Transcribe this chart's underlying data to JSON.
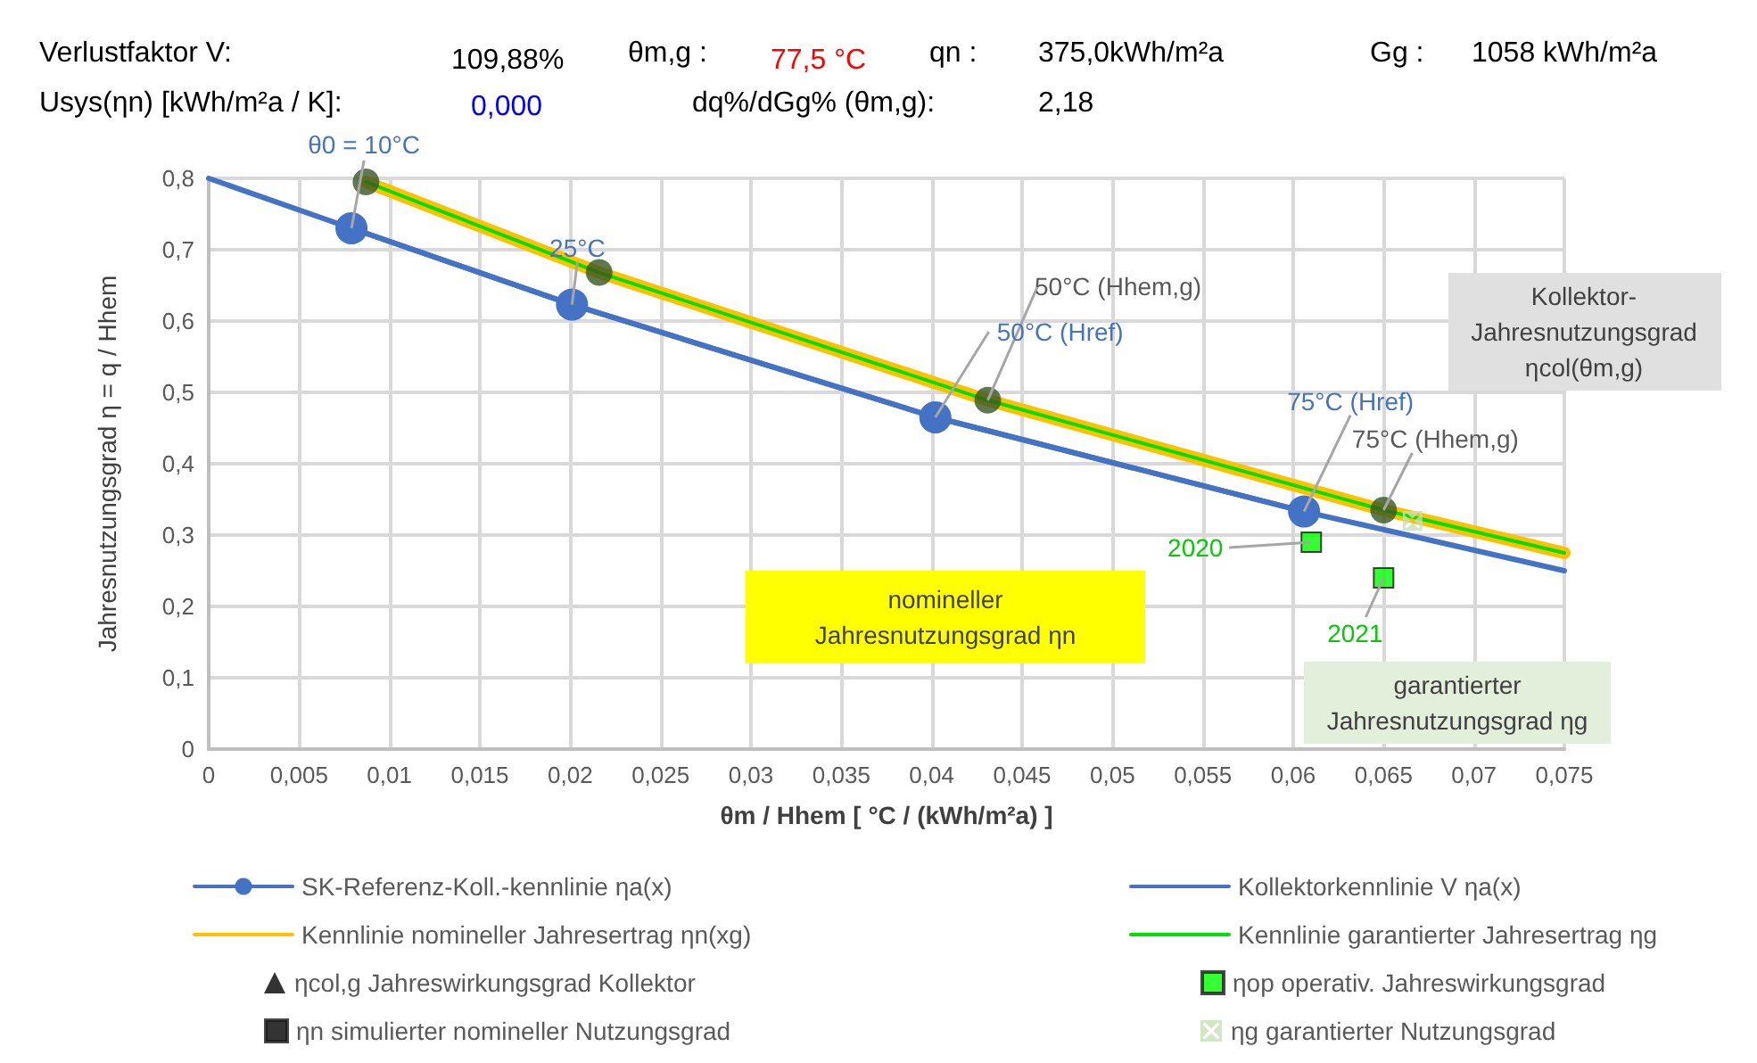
{
  "chart_data": {
    "type": "line",
    "xlabel": "θm / Hhem [ °C / (kWh/m²a) ]",
    "ylabel": "Jahresnutzungsgrad η = q / Hhem",
    "xlim": [
      0,
      0.075
    ],
    "ylim": [
      0,
      0.8
    ],
    "xticks": [
      {
        "value": 0,
        "label": "0"
      },
      {
        "value": 0.005,
        "label": "0,005"
      },
      {
        "value": 0.01,
        "label": "0,01"
      },
      {
        "value": 0.015,
        "label": "0,015"
      },
      {
        "value": 0.02,
        "label": "0,02"
      },
      {
        "value": 0.025,
        "label": "0,025"
      },
      {
        "value": 0.03,
        "label": "0,03"
      },
      {
        "value": 0.035,
        "label": "0,035"
      },
      {
        "value": 0.04,
        "label": "0,04"
      },
      {
        "value": 0.045,
        "label": "0,045"
      },
      {
        "value": 0.05,
        "label": "0,05"
      },
      {
        "value": 0.055,
        "label": "0,055"
      },
      {
        "value": 0.06,
        "label": "0,06"
      },
      {
        "value": 0.065,
        "label": "0,065"
      },
      {
        "value": 0.07,
        "label": "0,07"
      },
      {
        "value": 0.075,
        "label": "0,075"
      }
    ],
    "yticks": [
      {
        "value": 0,
        "label": "0"
      },
      {
        "value": 0.1,
        "label": "0,1"
      },
      {
        "value": 0.2,
        "label": "0,2"
      },
      {
        "value": 0.3,
        "label": "0,3"
      },
      {
        "value": 0.4,
        "label": "0,4"
      },
      {
        "value": 0.5,
        "label": "0,5"
      },
      {
        "value": 0.6,
        "label": "0,6"
      },
      {
        "value": 0.7,
        "label": "0,7"
      },
      {
        "value": 0.8,
        "label": "0,8"
      }
    ],
    "grid": true,
    "legend": "bottom",
    "series": [
      {
        "name": "SK-Referenz-Koll.-kennlinie ηa(x)",
        "color": "#4472c4",
        "marker": "circle",
        "x": [
          0.0079,
          0.0201,
          0.0402,
          0.0606
        ],
        "values": [
          0.73,
          0.623,
          0.465,
          0.333
        ]
      },
      {
        "name": "Kollektorkennlinie V ηa(x)",
        "color": "#4472c4",
        "marker": "none",
        "x": [
          0,
          0.0079,
          0.0201,
          0.0402,
          0.0606,
          0.075
        ],
        "values": [
          0.8,
          0.73,
          0.623,
          0.465,
          0.333,
          0.25
        ]
      },
      {
        "name": "Kennlinie nomineller Jahresertrag ηn(xg)",
        "color": "#ffc000",
        "marker": "none",
        "x": [
          0.0087,
          0.0216,
          0.0431,
          0.065,
          0.075
        ],
        "values": [
          0.795,
          0.668,
          0.489,
          0.335,
          0.275
        ]
      },
      {
        "name": "Kennlinie garantierter Jahresertrag ηg",
        "color": "#00e000",
        "marker": "none",
        "x": [
          0.0087,
          0.0216,
          0.0431,
          0.065,
          0.075
        ],
        "values": [
          0.795,
          0.668,
          0.489,
          0.335,
          0.275
        ]
      },
      {
        "name": "ηcol,g Jahreswirkungsgrad Kollektor",
        "type": "scatter",
        "color": "#000000",
        "marker": "triangle"
      },
      {
        "name": "ηop operativ. Jahreswirkungsgrad",
        "type": "scatter",
        "color": "#00ff00",
        "marker": "square",
        "x": [
          0.061,
          0.065
        ],
        "values": [
          0.29,
          0.24
        ]
      },
      {
        "name": "ηn simulierter nomineller Nutzungsgrad",
        "type": "scatter",
        "color": "#000000",
        "marker": "square"
      },
      {
        "name": "ηg garantierter Nutzungsgrad",
        "type": "scatter",
        "color": "#c6e0b4",
        "marker": "cross",
        "x": [
          0.0666
        ],
        "values": [
          0.32
        ]
      },
      {
        "type": "scatter",
        "color": "#375623",
        "marker": "circle",
        "x": [
          0.0087,
          0.0216,
          0.0431,
          0.065
        ],
        "values": [
          0.795,
          0.668,
          0.489,
          0.335
        ]
      }
    ],
    "annotations": [
      "Verlustfaktor V:",
      "109,88%",
      "θm,g :",
      "77,5 °C",
      "qn :",
      "375,0kWh/m²a",
      "Gg :",
      "1058 kWh/m²a",
      "Usys(ηn) [kWh/m²a / K]:",
      "0,000",
      "dq%/dGg% (θm,g):",
      "2,18",
      {
        "text": "θ0 = 10°C",
        "x": 0.0079,
        "y": 0.73
      },
      {
        "text": "25°C",
        "x": 0.0201,
        "y": 0.623
      },
      {
        "text": "50°C (Href)",
        "x": 0.0402,
        "y": 0.465
      },
      {
        "text": "75°C (Href)",
        "x": 0.0606,
        "y": 0.333
      },
      {
        "text": "50°C (Hhem,g)",
        "x": 0.0431,
        "y": 0.489
      },
      {
        "text": "75°C (Hhem,g)",
        "x": 0.065,
        "y": 0.335
      },
      {
        "text": "2020",
        "x": 0.061,
        "y": 0.29
      },
      {
        "text": "2021",
        "x": 0.065,
        "y": 0.24
      },
      "nomineller\nJahresnutzungsgrad ηn",
      "Kollektor-\nJahresnutzungsgrad\nηcol(θm,g)",
      "garantierter\nJahresnutzungsgrad ηg"
    ]
  }
}
